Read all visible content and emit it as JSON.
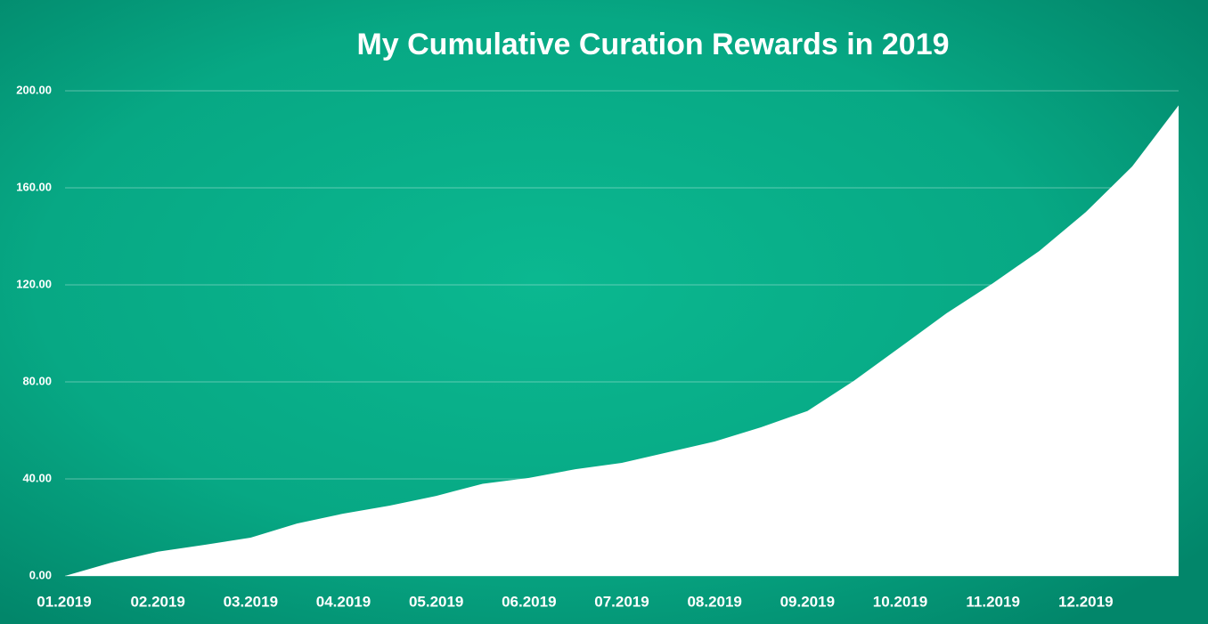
{
  "chart_data": {
    "type": "area",
    "title": "My Cumulative Curation Rewards in 2019",
    "categories": [
      "01.2019",
      null,
      "02.2019",
      null,
      "03.2019",
      null,
      "04.2019",
      null,
      "05.2019",
      null,
      "06.2019",
      null,
      "07.2019",
      null,
      "08.2019",
      null,
      "09.2019",
      null,
      "10.2019",
      null,
      "11.2019",
      null,
      "12.2019",
      null,
      null
    ],
    "values": [
      0,
      5.5,
      10,
      12.8,
      15.8,
      21.6,
      25.7,
      29,
      33,
      38,
      40.4,
      44,
      46.6,
      51,
      55.4,
      61.3,
      68,
      80.4,
      94.3,
      108.3,
      120.7,
      134,
      150,
      168.8,
      194
    ],
    "color": "#ffffff",
    "ylim": [
      0,
      200
    ],
    "yticks": [
      {
        "value": 0,
        "label": "0.00"
      },
      {
        "value": 40,
        "label": "40.00"
      },
      {
        "value": 80,
        "label": "80.00"
      },
      {
        "value": 120,
        "label": "120.00"
      },
      {
        "value": 160,
        "label": "160.00"
      },
      {
        "value": 200,
        "label": "200.00"
      }
    ],
    "grid": true
  }
}
